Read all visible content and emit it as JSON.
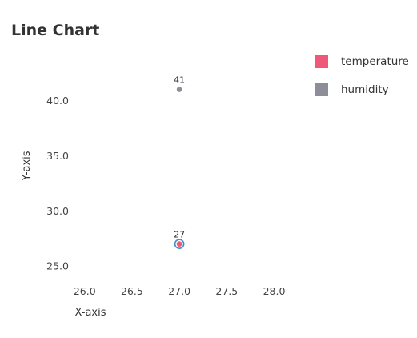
{
  "chart_data": {
    "type": "scatter",
    "title": "Line Chart",
    "xlabel": "X-axis",
    "ylabel": "Y-axis",
    "xlim": [
      25.85,
      28.3
    ],
    "ylim": [
      24.0,
      43.0
    ],
    "x_ticks": [
      "26.0",
      "26.5",
      "27.0",
      "27.5",
      "28.0"
    ],
    "x_tick_values": [
      26.0,
      26.5,
      27.0,
      27.5,
      28.0
    ],
    "y_ticks": [
      "25.0",
      "30.0",
      "35.0",
      "40.0"
    ],
    "y_tick_values": [
      25.0,
      30.0,
      35.0,
      40.0
    ],
    "grid": false,
    "legend_position": "top-right",
    "series": [
      {
        "name": "temperature",
        "color": "#f0587a",
        "points": [
          {
            "x": 27.0,
            "y": 27.0,
            "label": "27"
          }
        ]
      },
      {
        "name": "humidity",
        "color": "#8e8e98",
        "points": [
          {
            "x": 27.0,
            "y": 41.0,
            "label": "41"
          }
        ]
      }
    ],
    "highlight_ring_color": "#3a8fc8"
  }
}
